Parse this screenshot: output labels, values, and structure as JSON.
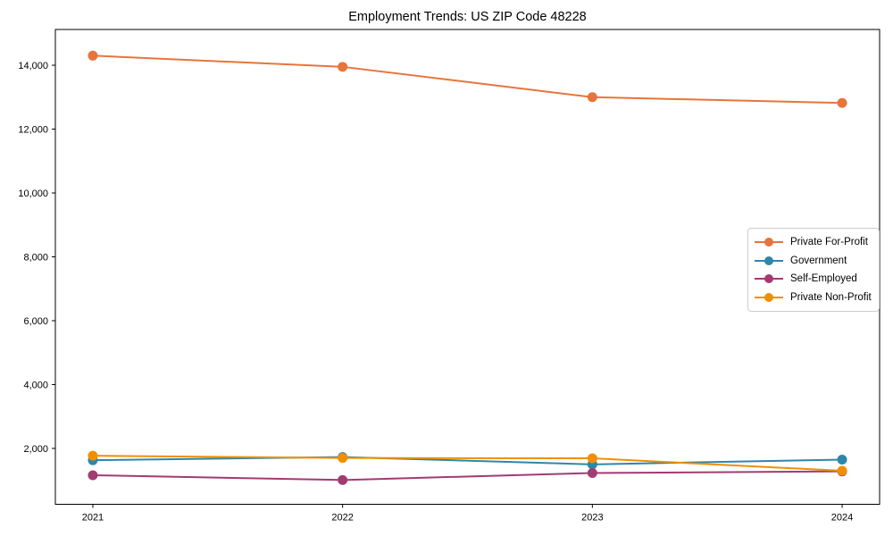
{
  "chart_data": {
    "type": "line",
    "title": "Employment Trends: US ZIP Code 48228",
    "x": [
      2021,
      2022,
      2023,
      2024
    ],
    "series": [
      {
        "name": "Private For-Profit",
        "color": "#E8743B",
        "values": [
          14300,
          13950,
          13000,
          12820
        ]
      },
      {
        "name": "Government",
        "color": "#2E86AB",
        "values": [
          1630,
          1730,
          1500,
          1650
        ]
      },
      {
        "name": "Self-Employed",
        "color": "#A23B72",
        "values": [
          1160,
          1010,
          1230,
          1280
        ]
      },
      {
        "name": "Private Non-Profit",
        "color": "#F18F01",
        "values": [
          1770,
          1700,
          1690,
          1300
        ]
      }
    ],
    "xlabel": "",
    "ylabel": "",
    "xticks": [
      2021,
      2022,
      2023,
      2024
    ],
    "yticks": [
      2000,
      4000,
      6000,
      8000,
      10000,
      12000,
      14000
    ],
    "xlim": [
      2020.85,
      2024.15
    ],
    "ylim": [
      250,
      15120
    ],
    "grid": false,
    "legend_position": "center-right",
    "marker": "circle",
    "line_width": 2,
    "marker_radius": 5.5,
    "background": "#ffffff",
    "spine_color": "#000000"
  }
}
